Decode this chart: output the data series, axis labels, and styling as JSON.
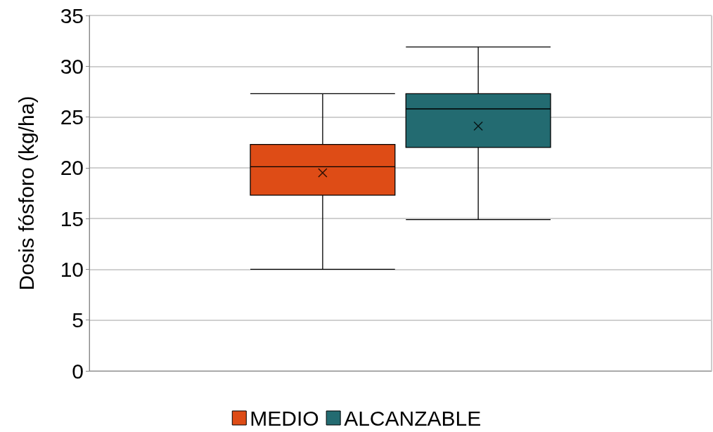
{
  "chart_data": {
    "type": "box",
    "ylabel": "Dosis fósforo (kg/ha)",
    "categories": [
      null
    ],
    "series": [
      {
        "name": "MEDIO",
        "color": "#de4c16",
        "boxes": [
          {
            "low": 10,
            "q1": 17.3,
            "median": 20.1,
            "q3": 22.3,
            "high": 27.3,
            "mean": 19.5
          }
        ]
      },
      {
        "name": "ALCANZABLE",
        "color": "#236b71",
        "boxes": [
          {
            "low": 14.9,
            "q1": 22,
            "median": 25.8,
            "q3": 27.3,
            "high": 31.9,
            "mean": 24.1
          }
        ]
      }
    ],
    "ylim": [
      0,
      35
    ],
    "yticks": [
      0,
      5,
      10,
      15,
      20,
      25,
      30,
      35
    ],
    "grid": "y",
    "legend": "bottom"
  }
}
